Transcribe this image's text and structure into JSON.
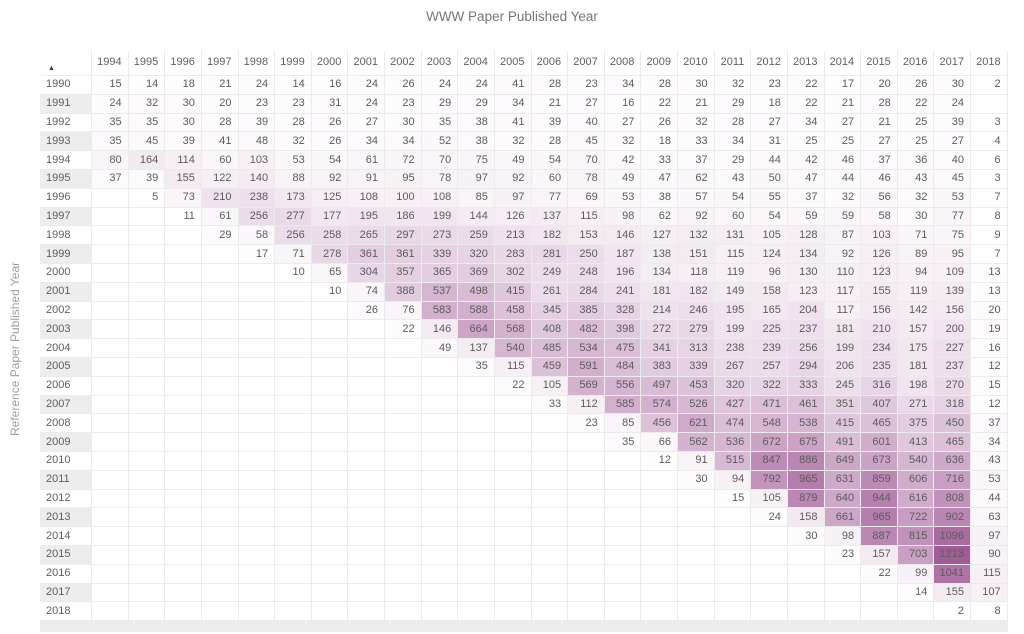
{
  "title": "WWW Paper Published Year",
  "y_axis_label": "Reference Paper Published Year",
  "sort_indicator": "ascending",
  "colors": {
    "heat_max": "#a15b97",
    "heat_min": "#ffffff",
    "row_stripe": "#ededed",
    "grid_line": "#ebebeb",
    "title_text": "#767676",
    "header_text": "#605e5c",
    "value_text": "#5c5c5c",
    "axis_label_text": "#a0a0a0",
    "sort_icon": "#323130"
  },
  "chart_data": {
    "type": "heatmap",
    "title": "WWW Paper Published Year",
    "x_label": "WWW Paper Published Year",
    "y_label": "Reference Paper Published Year",
    "legend": "none",
    "grid": true,
    "max_value": 1213,
    "columns": [
      "1994",
      "1995",
      "1996",
      "1997",
      "1998",
      "1999",
      "2000",
      "2001",
      "2002",
      "2003",
      "2004",
      "2005",
      "2006",
      "2007",
      "2008",
      "2009",
      "2010",
      "2011",
      "2012",
      "2013",
      "2014",
      "2015",
      "2016",
      "2017",
      "2018"
    ],
    "rows": [
      "1990",
      "1991",
      "1992",
      "1993",
      "1994",
      "1995",
      "1996",
      "1997",
      "1998",
      "1999",
      "2000",
      "2001",
      "2002",
      "2003",
      "2004",
      "2005",
      "2006",
      "2007",
      "2008",
      "2009",
      "2010",
      "2011",
      "2012",
      "2013",
      "2014",
      "2015",
      "2016",
      "2017",
      "2018"
    ],
    "values": [
      [
        15,
        14,
        18,
        21,
        24,
        14,
        16,
        24,
        26,
        24,
        24,
        41,
        28,
        23,
        34,
        28,
        30,
        32,
        23,
        22,
        17,
        20,
        26,
        30,
        2
      ],
      [
        24,
        32,
        30,
        20,
        23,
        23,
        31,
        24,
        23,
        29,
        29,
        34,
        21,
        27,
        16,
        22,
        21,
        29,
        18,
        22,
        21,
        28,
        22,
        24,
        null
      ],
      [
        35,
        35,
        30,
        28,
        39,
        28,
        26,
        27,
        30,
        35,
        38,
        41,
        39,
        40,
        27,
        26,
        32,
        28,
        27,
        34,
        27,
        21,
        25,
        39,
        3
      ],
      [
        35,
        45,
        39,
        41,
        48,
        32,
        26,
        34,
        34,
        52,
        38,
        32,
        28,
        45,
        32,
        18,
        33,
        34,
        31,
        25,
        25,
        27,
        25,
        27,
        4
      ],
      [
        80,
        164,
        114,
        60,
        103,
        53,
        54,
        61,
        72,
        70,
        75,
        49,
        54,
        70,
        42,
        33,
        37,
        29,
        44,
        42,
        46,
        37,
        36,
        40,
        6
      ],
      [
        37,
        39,
        155,
        122,
        140,
        88,
        92,
        91,
        95,
        78,
        97,
        92,
        60,
        78,
        49,
        47,
        62,
        43,
        50,
        47,
        44,
        46,
        43,
        45,
        3
      ],
      [
        null,
        5,
        73,
        210,
        238,
        173,
        125,
        108,
        100,
        108,
        85,
        97,
        77,
        69,
        53,
        38,
        57,
        54,
        55,
        37,
        32,
        56,
        32,
        53,
        7
      ],
      [
        null,
        null,
        11,
        61,
        256,
        277,
        177,
        195,
        186,
        199,
        144,
        126,
        137,
        115,
        98,
        62,
        92,
        60,
        54,
        59,
        59,
        58,
        30,
        77,
        8
      ],
      [
        null,
        null,
        null,
        29,
        58,
        256,
        258,
        265,
        297,
        273,
        259,
        213,
        182,
        153,
        146,
        127,
        132,
        131,
        105,
        128,
        87,
        103,
        71,
        75,
        9
      ],
      [
        null,
        null,
        null,
        null,
        17,
        71,
        278,
        361,
        361,
        339,
        320,
        283,
        281,
        250,
        187,
        138,
        151,
        115,
        124,
        134,
        92,
        126,
        89,
        95,
        7
      ],
      [
        null,
        null,
        null,
        null,
        null,
        10,
        65,
        304,
        357,
        365,
        369,
        302,
        249,
        248,
        196,
        134,
        118,
        119,
        96,
        130,
        110,
        123,
        94,
        109,
        13
      ],
      [
        null,
        null,
        null,
        null,
        null,
        null,
        10,
        74,
        388,
        537,
        498,
        415,
        261,
        284,
        241,
        181,
        182,
        149,
        158,
        123,
        117,
        155,
        119,
        139,
        13
      ],
      [
        null,
        null,
        null,
        null,
        null,
        null,
        null,
        26,
        76,
        583,
        588,
        458,
        345,
        385,
        328,
        214,
        246,
        195,
        165,
        204,
        117,
        156,
        142,
        156,
        20
      ],
      [
        null,
        null,
        null,
        null,
        null,
        null,
        null,
        null,
        22,
        146,
        664,
        568,
        408,
        482,
        398,
        272,
        279,
        199,
        225,
        237,
        181,
        210,
        157,
        200,
        19
      ],
      [
        null,
        null,
        null,
        null,
        null,
        null,
        null,
        null,
        null,
        49,
        137,
        540,
        485,
        534,
        475,
        341,
        313,
        238,
        239,
        256,
        199,
        234,
        175,
        227,
        16
      ],
      [
        null,
        null,
        null,
        null,
        null,
        null,
        null,
        null,
        null,
        null,
        35,
        115,
        459,
        591,
        484,
        383,
        339,
        267,
        257,
        294,
        206,
        235,
        181,
        237,
        12
      ],
      [
        null,
        null,
        null,
        null,
        null,
        null,
        null,
        null,
        null,
        null,
        null,
        22,
        105,
        569,
        556,
        497,
        453,
        320,
        322,
        333,
        245,
        316,
        198,
        270,
        15
      ],
      [
        null,
        null,
        null,
        null,
        null,
        null,
        null,
        null,
        null,
        null,
        null,
        null,
        33,
        112,
        585,
        574,
        526,
        427,
        471,
        461,
        351,
        407,
        271,
        318,
        12
      ],
      [
        null,
        null,
        null,
        null,
        null,
        null,
        null,
        null,
        null,
        null,
        null,
        null,
        null,
        23,
        85,
        456,
        621,
        474,
        548,
        538,
        415,
        465,
        375,
        450,
        37
      ],
      [
        null,
        null,
        null,
        null,
        null,
        null,
        null,
        null,
        null,
        null,
        null,
        null,
        null,
        null,
        35,
        66,
        562,
        536,
        672,
        675,
        491,
        601,
        413,
        465,
        34
      ],
      [
        null,
        null,
        null,
        null,
        null,
        null,
        null,
        null,
        null,
        null,
        null,
        null,
        null,
        null,
        null,
        12,
        91,
        515,
        847,
        886,
        649,
        673,
        540,
        636,
        43
      ],
      [
        null,
        null,
        null,
        null,
        null,
        null,
        null,
        null,
        null,
        null,
        null,
        null,
        null,
        null,
        null,
        null,
        30,
        94,
        792,
        965,
        631,
        859,
        606,
        716,
        53
      ],
      [
        null,
        null,
        null,
        null,
        null,
        null,
        null,
        null,
        null,
        null,
        null,
        null,
        null,
        null,
        null,
        null,
        null,
        15,
        105,
        879,
        640,
        944,
        616,
        808,
        44
      ],
      [
        null,
        null,
        null,
        null,
        null,
        null,
        null,
        null,
        null,
        null,
        null,
        null,
        null,
        null,
        null,
        null,
        null,
        null,
        24,
        158,
        661,
        965,
        722,
        902,
        63
      ],
      [
        null,
        null,
        null,
        null,
        null,
        null,
        null,
        null,
        null,
        null,
        null,
        null,
        null,
        null,
        null,
        null,
        null,
        null,
        null,
        30,
        98,
        887,
        815,
        1096,
        97
      ],
      [
        null,
        null,
        null,
        null,
        null,
        null,
        null,
        null,
        null,
        null,
        null,
        null,
        null,
        null,
        null,
        null,
        null,
        null,
        null,
        null,
        23,
        157,
        703,
        1213,
        90
      ],
      [
        null,
        null,
        null,
        null,
        null,
        null,
        null,
        null,
        null,
        null,
        null,
        null,
        null,
        null,
        null,
        null,
        null,
        null,
        null,
        null,
        null,
        22,
        99,
        1041,
        115
      ],
      [
        null,
        null,
        null,
        null,
        null,
        null,
        null,
        null,
        null,
        null,
        null,
        null,
        null,
        null,
        null,
        null,
        null,
        null,
        null,
        null,
        null,
        null,
        14,
        155,
        107
      ],
      [
        null,
        null,
        null,
        null,
        null,
        null,
        null,
        null,
        null,
        null,
        null,
        null,
        null,
        null,
        null,
        null,
        null,
        null,
        null,
        null,
        null,
        null,
        null,
        2,
        8
      ]
    ]
  }
}
